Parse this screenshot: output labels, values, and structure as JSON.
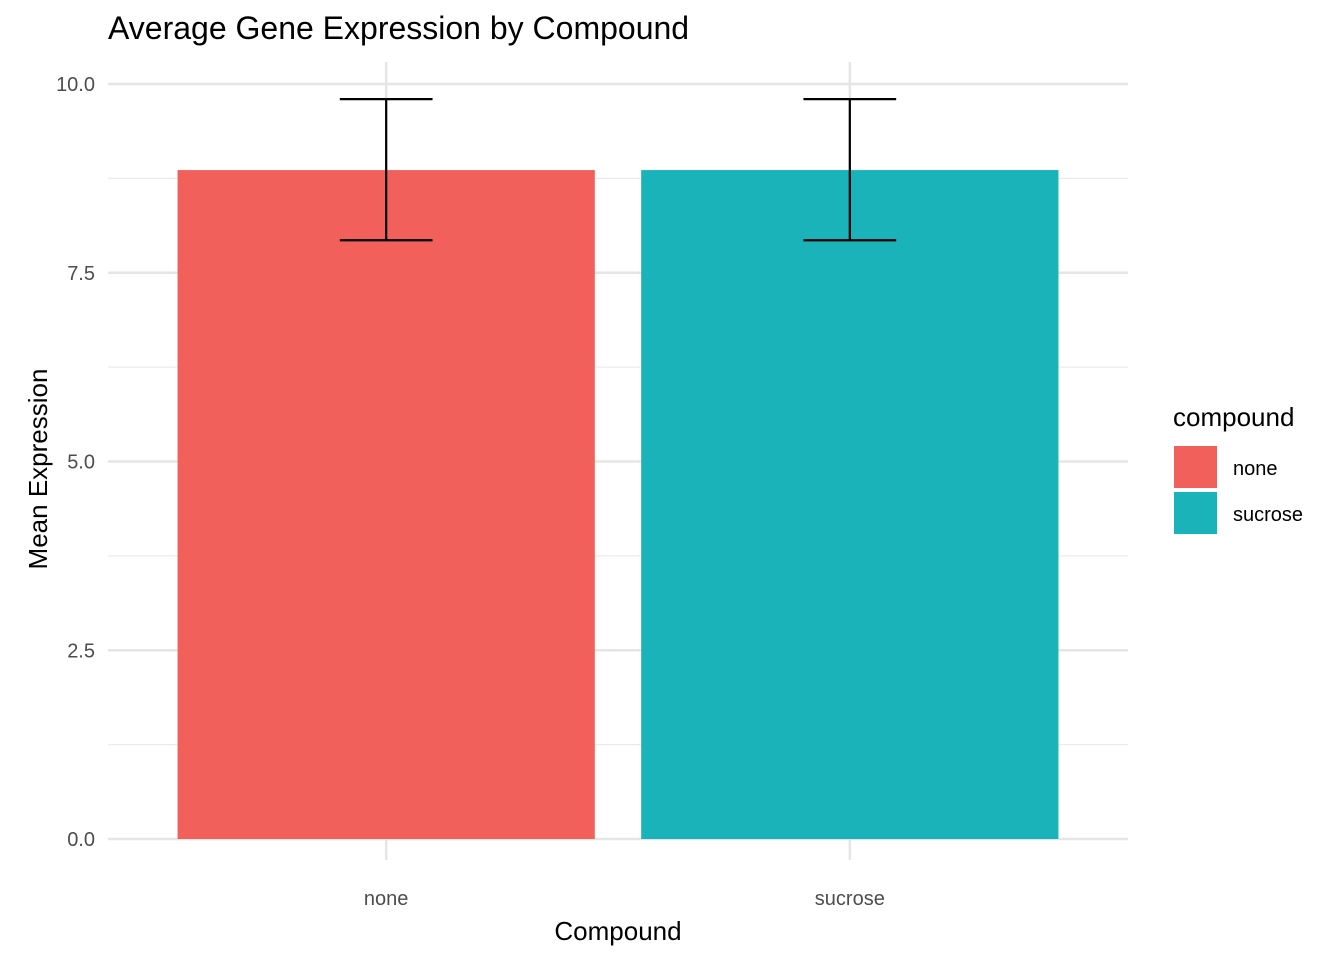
{
  "chart_data": {
    "type": "bar",
    "title": "Average Gene Expression by Compound",
    "xlabel": "Compound",
    "ylabel": "Mean Expression",
    "categories": [
      "none",
      "sucrose"
    ],
    "values": [
      8.86,
      8.86
    ],
    "error_lower": [
      7.93,
      7.93
    ],
    "error_upper": [
      9.8,
      9.8
    ],
    "colors": [
      "#F2605C",
      "#1AB3B9"
    ],
    "ylim": [
      0,
      10.4
    ],
    "yticks": [
      0.0,
      2.5,
      5.0,
      7.5,
      10.0
    ],
    "ytick_labels": [
      "0.0",
      "2.5",
      "5.0",
      "7.5",
      "10.0"
    ],
    "grid": true,
    "legend": {
      "title": "compound",
      "position": "right",
      "entries": [
        "none",
        "sucrose"
      ]
    }
  }
}
